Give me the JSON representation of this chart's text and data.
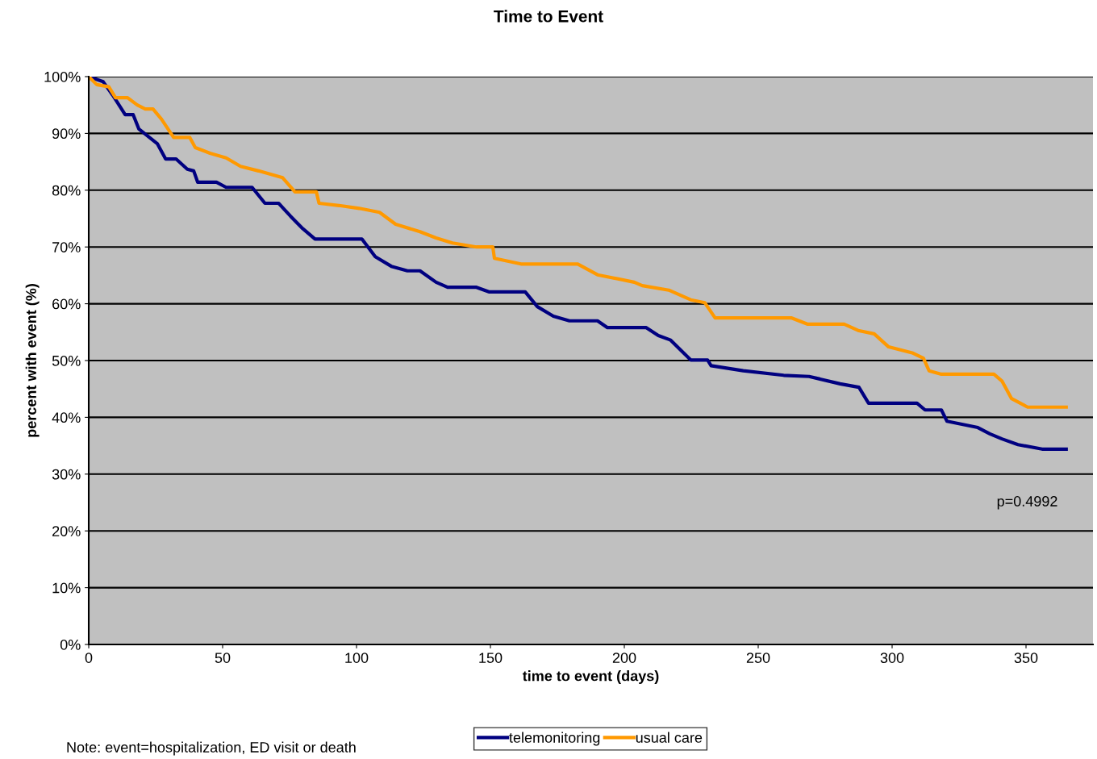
{
  "chart_data": {
    "type": "line",
    "title": "Time to Event",
    "xlabel": "time to event (days)",
    "ylabel": "percent with event (%)",
    "annotations": [
      "p=0.4992",
      "Note: event=hospitalization, ED visit or death"
    ],
    "xlim": [
      0,
      375
    ],
    "xticks": [
      0,
      50,
      100,
      150,
      200,
      250,
      300,
      350
    ],
    "ylim": [
      0,
      100
    ],
    "yticks": [
      {
        "value": 0,
        "label": "0%"
      },
      {
        "value": 10,
        "label": "10%"
      },
      {
        "value": 20,
        "label": "20%"
      },
      {
        "value": 30,
        "label": "30%"
      },
      {
        "value": 40,
        "label": "40%"
      },
      {
        "value": 50,
        "label": "50%"
      },
      {
        "value": 60,
        "label": "60%"
      },
      {
        "value": 70,
        "label": "70%"
      },
      {
        "value": 80,
        "label": "80%"
      },
      {
        "value": 90,
        "label": "90%"
      },
      {
        "value": 100,
        "label": "100%"
      }
    ],
    "grid": "y",
    "legend": "bottom",
    "line_style": "solid",
    "marker": "none",
    "series": [
      {
        "name": "telemonitoring",
        "color": "#000080",
        "x": [
          0,
          5.4,
          9,
          13.6,
          16.6,
          18.7,
          25.6,
          28.7,
          32.6,
          36.8,
          39.2,
          40.7,
          47.7,
          51.3,
          61,
          65.8,
          70.9,
          75.4,
          80,
          84.5,
          102,
          107,
          113,
          119,
          123.7,
          129.7,
          134,
          144.8,
          149.4,
          163,
          167.5,
          173.5,
          179.5,
          190,
          193.7,
          208.2,
          212.7,
          217.3,
          224.8,
          231.1,
          232.4,
          244.4,
          259.5,
          269,
          280.6,
          287.6,
          291.2,
          309.3,
          312.3,
          318.4,
          320.5,
          332,
          336.5,
          341,
          347,
          356,
          365
        ],
        "values": [
          100,
          99.1,
          96.7,
          93.3,
          93.3,
          90.8,
          88.2,
          85.5,
          85.5,
          83.7,
          83.4,
          81.4,
          81.4,
          80.5,
          80.5,
          77.7,
          77.7,
          75.4,
          73.2,
          71.4,
          71.4,
          68.3,
          66.6,
          65.8,
          65.8,
          63.8,
          62.9,
          62.9,
          62.1,
          62.1,
          59.5,
          57.8,
          57,
          57,
          55.8,
          55.8,
          54.4,
          53.6,
          50.1,
          50.1,
          49.1,
          48.2,
          47.4,
          47.2,
          45.9,
          45.3,
          42.5,
          42.5,
          41.3,
          41.3,
          39.3,
          38.2,
          37.1,
          36.2,
          35.2,
          34.4,
          34.4
        ]
      },
      {
        "name": "usual care",
        "color": "#ff9900",
        "x": [
          0,
          3,
          7.5,
          10,
          14.5,
          18.1,
          21.1,
          24,
          27.2,
          31.7,
          37.7,
          39.8,
          45.3,
          51.3,
          56.7,
          63.4,
          72.4,
          77,
          85,
          86,
          93.5,
          101,
          108.6,
          114.6,
          123.7,
          129.7,
          135.8,
          144.8,
          150.9,
          151.5,
          161.4,
          182.6,
          190,
          203.7,
          206.7,
          216.6,
          224.8,
          230,
          233.9,
          262.5,
          268.5,
          282.1,
          287.3,
          293.3,
          298.7,
          307.8,
          311.7,
          313.8,
          318.4,
          338,
          341,
          344.6,
          350.6,
          365
        ],
        "values": [
          100,
          98.6,
          98.2,
          96.3,
          96.3,
          95,
          94.3,
          94.3,
          92.5,
          89.3,
          89.3,
          87.5,
          86.5,
          85.7,
          84.2,
          83.4,
          82.2,
          79.7,
          79.7,
          77.7,
          77.3,
          76.8,
          76.1,
          74,
          72.7,
          71.6,
          70.7,
          70,
          70,
          68,
          67,
          67,
          65.1,
          63.8,
          63.2,
          62.4,
          60.7,
          60.2,
          57.5,
          57.5,
          56.4,
          56.4,
          55.3,
          54.7,
          52.4,
          51.3,
          50.4,
          48.2,
          47.6,
          47.6,
          46.4,
          43.3,
          41.8,
          41.8
        ]
      }
    ]
  }
}
